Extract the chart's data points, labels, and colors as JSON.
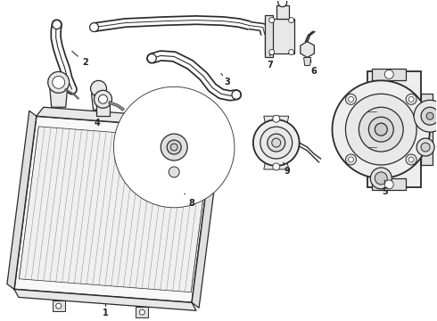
{
  "background_color": "#ffffff",
  "line_color": "#2a2a2a",
  "label_color": "#222222",
  "figsize": [
    4.9,
    3.6
  ],
  "dpi": 100,
  "lw": 0.9,
  "lw_thick": 1.3,
  "lw_hose": 6.5,
  "lw_hose_inner": 4.5
}
